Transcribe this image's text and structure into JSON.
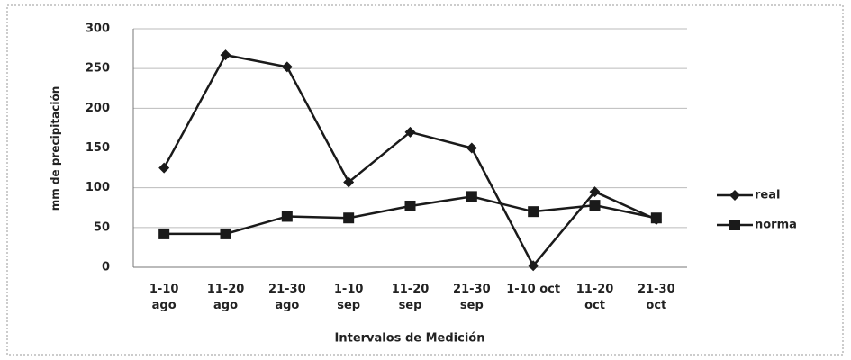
{
  "chart_data": {
    "type": "line",
    "categories": [
      "1-10 ago",
      "11-20 ago",
      "21-30 ago",
      "1-10 sep",
      "11-20 sep",
      "21-30 sep",
      "1-10 oct",
      "11-20 oct",
      "21-30 oct"
    ],
    "series": [
      {
        "name": "real",
        "color": "#1a1a1a",
        "marker": "diamond",
        "values": [
          125,
          267,
          252,
          107,
          170,
          150,
          2,
          95,
          60
        ]
      },
      {
        "name": "norma",
        "color": "#1a1a1a",
        "marker": "square",
        "values": [
          42,
          42,
          64,
          62,
          77,
          89,
          70,
          78,
          62
        ]
      }
    ],
    "ylim": [
      0,
      300
    ],
    "yticks": [
      0,
      50,
      100,
      150,
      200,
      250,
      300
    ],
    "grid": true,
    "xlabel": "Intervalos de Medición",
    "ylabel": "mm de precipitación",
    "legend": "right"
  }
}
